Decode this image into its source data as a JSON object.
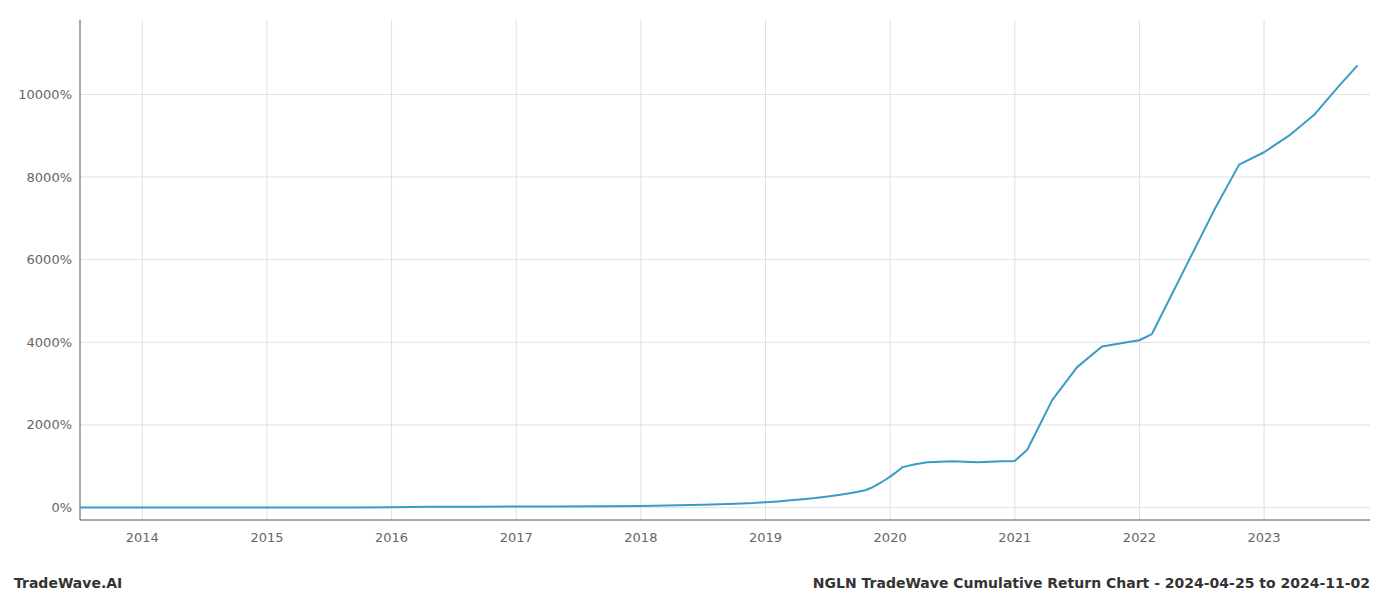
{
  "chart_data": {
    "type": "line",
    "title": "NGLN TradeWave Cumulative Return Chart - 2024-04-25 to 2024-11-02",
    "annotations": [
      "TradeWave.AI"
    ],
    "x": [
      2013.5,
      2014.0,
      2014.3,
      2014.7,
      2015.0,
      2015.3,
      2015.7,
      2016.0,
      2016.3,
      2016.7,
      2017.0,
      2017.3,
      2017.7,
      2018.0,
      2018.3,
      2018.5,
      2018.7,
      2018.9,
      2019.0,
      2019.1,
      2019.2,
      2019.3,
      2019.4,
      2019.5,
      2019.6,
      2019.7,
      2019.8,
      2019.85,
      2019.9,
      2019.95,
      2020.0,
      2020.05,
      2020.1,
      2020.2,
      2020.3,
      2020.5,
      2020.7,
      2020.9,
      2021.0,
      2021.1,
      2021.2,
      2021.3,
      2021.5,
      2021.7,
      2021.9,
      2022.0,
      2022.1,
      2022.2,
      2022.4,
      2022.6,
      2022.8,
      2023.0,
      2023.2,
      2023.4,
      2023.6,
      2023.75
    ],
    "values": [
      5,
      5,
      3,
      2,
      2,
      3,
      5,
      10,
      18,
      22,
      25,
      28,
      32,
      40,
      55,
      70,
      90,
      110,
      130,
      150,
      175,
      200,
      230,
      270,
      310,
      360,
      420,
      480,
      560,
      650,
      750,
      860,
      980,
      1050,
      1100,
      1120,
      1100,
      1120,
      1130,
      1400,
      2000,
      2600,
      3400,
      3900,
      4000,
      4050,
      4200,
      4800,
      6000,
      7200,
      8300,
      8600,
      9000,
      9500,
      10200,
      10700
    ],
    "color": "#3a9cc5",
    "xlim": [
      2013.5,
      2023.85
    ],
    "xticks": [
      2014,
      2015,
      2016,
      2017,
      2018,
      2019,
      2020,
      2021,
      2022,
      2023
    ],
    "ylim": [
      -300,
      11800
    ],
    "yticks": [
      {
        "value": 0,
        "label": "0%"
      },
      {
        "value": 2000,
        "label": "2000%"
      },
      {
        "value": 4000,
        "label": "4000%"
      },
      {
        "value": 6000,
        "label": "6000%"
      },
      {
        "value": 8000,
        "label": "8000%"
      },
      {
        "value": 10000,
        "label": "10000%"
      }
    ],
    "grid": true
  }
}
